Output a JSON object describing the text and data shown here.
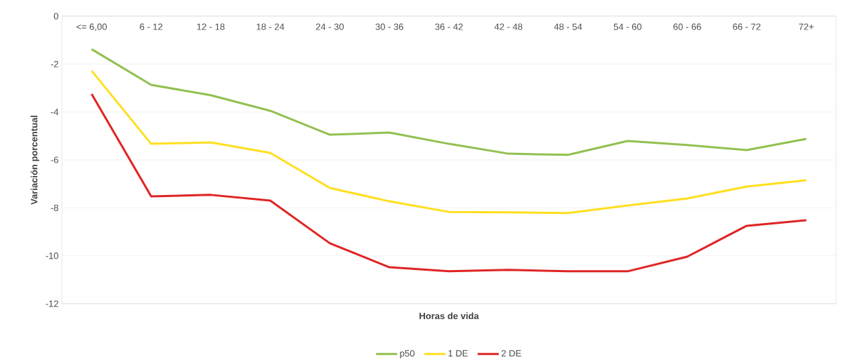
{
  "chart_data": {
    "type": "line",
    "xlabel": "Horas de vida",
    "ylabel": "Variación porcentual",
    "categories": [
      "<= 6,00",
      "6 - 12",
      "12 - 18",
      "18 - 24",
      "24 - 30",
      "30 - 36",
      "36 - 42",
      "42 - 48",
      "48 - 54",
      "54 - 60",
      "60 - 66",
      "66 - 72",
      "72+"
    ],
    "series": [
      {
        "name": "p50",
        "color": "#92c050",
        "values": [
          -1.38,
          -2.87,
          -3.3,
          -3.95,
          -4.95,
          -4.86,
          -5.33,
          -5.74,
          -5.79,
          -5.21,
          -5.38,
          -5.59,
          -5.12
        ]
      },
      {
        "name": "1 DE",
        "color": "#ffdf20",
        "values": [
          -2.28,
          -5.33,
          -5.27,
          -5.71,
          -7.17,
          -7.73,
          -8.17,
          -8.19,
          -8.22,
          -7.9,
          -7.61,
          -7.11,
          -6.85
        ]
      },
      {
        "name": "2 DE",
        "color": "#e02424",
        "values": [
          -3.25,
          -7.52,
          -7.46,
          -7.7,
          -9.48,
          -10.48,
          -10.65,
          -10.59,
          -10.65,
          -10.65,
          -10.04,
          -8.75,
          -8.52
        ]
      }
    ],
    "ylim": [
      -12,
      0
    ],
    "yticks": [
      0,
      -2,
      -4,
      -6,
      -8,
      -10,
      -12
    ],
    "grid": "y",
    "legend": "bottom",
    "marker": "none",
    "line_style": "solid"
  }
}
